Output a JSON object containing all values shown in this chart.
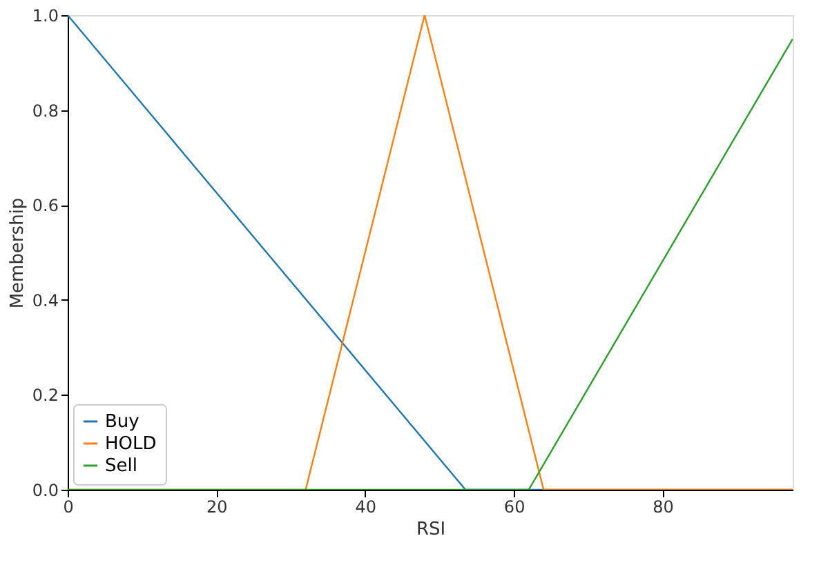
{
  "chart_data": {
    "type": "line",
    "xlabel": "RSI",
    "ylabel": "Membership",
    "xlim": [
      0,
      97.5
    ],
    "ylim": [
      0,
      1.0
    ],
    "xticks": [
      0,
      20,
      40,
      60,
      80
    ],
    "yticks": [
      {
        "value": 0,
        "label": "0.0"
      },
      {
        "value": 0.2,
        "label": "0.2"
      },
      {
        "value": 0.4,
        "label": "0.4"
      },
      {
        "value": 0.6,
        "label": "0.6"
      },
      {
        "value": 0.8,
        "label": "0.8"
      },
      {
        "value": 1.0,
        "label": "1.0"
      }
    ],
    "grid": false,
    "legend": "bottom left",
    "series": [
      {
        "name": "Buy",
        "color": "#1f77b4",
        "x": [
          0,
          53.5,
          97.5
        ],
        "values": [
          1.0,
          0,
          0
        ]
      },
      {
        "name": "HOLD",
        "color": "#ff7f0e",
        "x": [
          0,
          32,
          48,
          64,
          97.5
        ],
        "values": [
          0,
          0,
          1.0,
          0,
          0
        ]
      },
      {
        "name": "Sell",
        "color": "#2ca02c",
        "x": [
          0,
          62,
          97.5
        ],
        "values": [
          0,
          0,
          0.95
        ]
      }
    ]
  }
}
